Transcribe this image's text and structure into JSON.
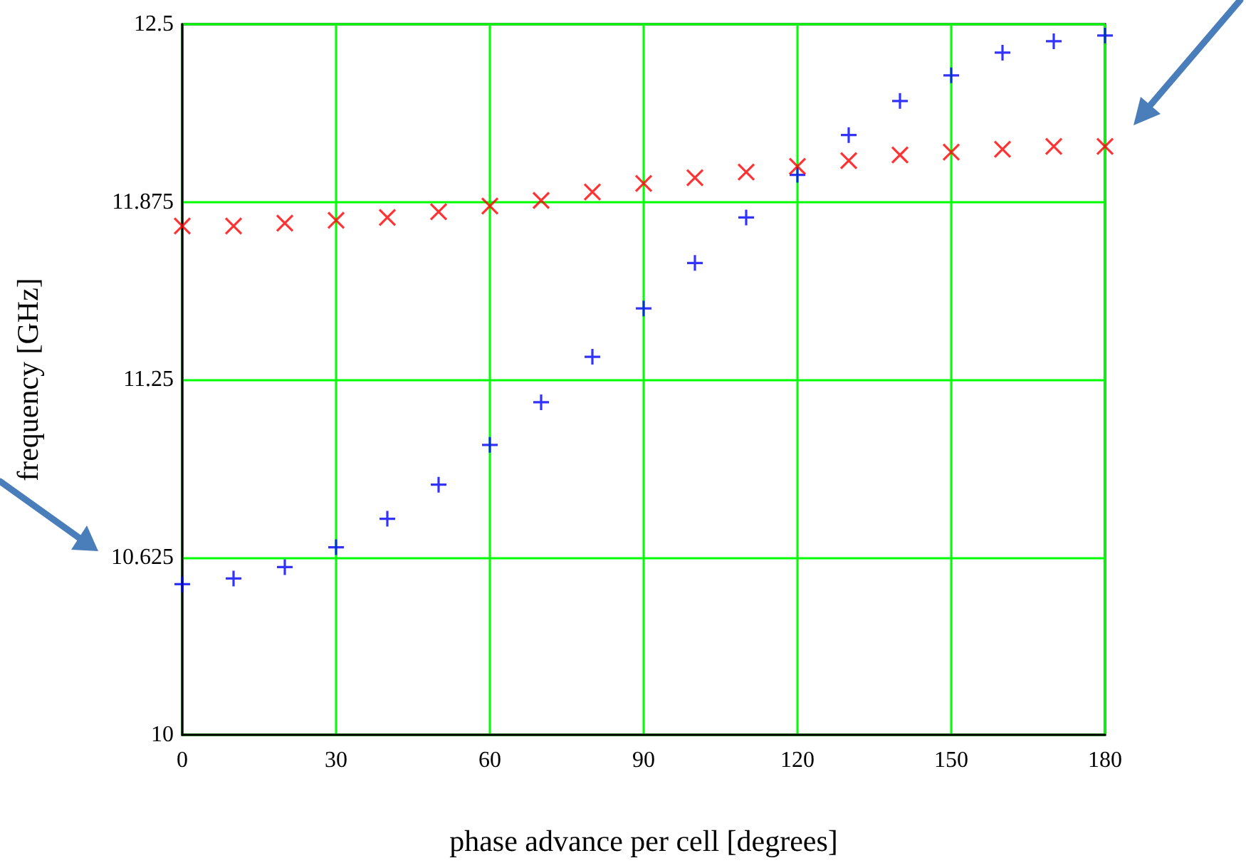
{
  "chart_data": {
    "type": "scatter",
    "xlabel": "phase advance per cell [degrees]",
    "ylabel": "frequency [GHz]",
    "x": [
      0,
      10,
      20,
      30,
      40,
      50,
      60,
      70,
      80,
      90,
      100,
      110,
      120,
      130,
      140,
      150,
      160,
      170,
      180
    ],
    "series": [
      {
        "color": "#0000ff",
        "marker": "cross",
        "values": [
          10.53,
          10.55,
          10.59,
          10.66,
          10.76,
          10.88,
          11.02,
          11.17,
          11.33,
          11.5,
          11.66,
          11.82,
          11.97,
          12.11,
          12.23,
          12.32,
          12.4,
          12.44,
          12.46
        ]
      },
      {
        "color": "#ff0000",
        "marker": "x",
        "values": [
          11.79,
          11.79,
          11.8,
          11.81,
          11.82,
          11.84,
          11.86,
          11.88,
          11.91,
          11.94,
          11.96,
          11.98,
          12.0,
          12.02,
          12.04,
          12.05,
          12.06,
          12.07,
          12.07
        ]
      }
    ],
    "xlim": [
      0,
      180
    ],
    "xticks": [
      0,
      30,
      60,
      90,
      120,
      150,
      180
    ],
    "ylim": [
      10,
      12.5
    ],
    "yticks": [
      10,
      10.625,
      11.25,
      11.875,
      12.5
    ],
    "grid": true
  }
}
